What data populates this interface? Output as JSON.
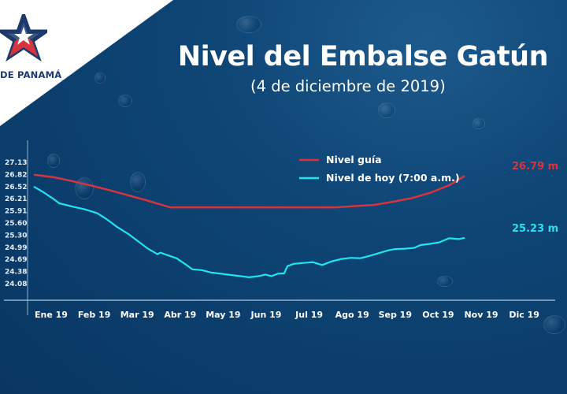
{
  "header": {
    "title": "Nivel del Embalse Gatún",
    "subtitle": "(4 de diciembre de 2019)",
    "logo_text": "DE PANAMÁ",
    "logo_icon": "star-icon"
  },
  "colors": {
    "guide": "#d8343f",
    "today": "#22e3f0",
    "background": "#0b3d6b",
    "axis": "#8fb3d6"
  },
  "chart_data": {
    "type": "line",
    "title": "Nivel del Embalse Gatún",
    "subtitle": "(4 de diciembre de 2019)",
    "xlabel": "",
    "ylabel": "",
    "unit": "m",
    "categories": [
      "Ene 19",
      "Feb 19",
      "Mar 19",
      "Abr 19",
      "May 19",
      "Jun 19",
      "Jul 19",
      "Ago 19",
      "Sep 19",
      "Oct 19",
      "Nov 19",
      "Dic 19"
    ],
    "yticks": [
      "27.13",
      "26.82",
      "26.52",
      "26.21",
      "25.91",
      "25.60",
      "25.30",
      "24.99",
      "24.69",
      "24.38",
      "24.08"
    ],
    "ylim": [
      23.8,
      27.3
    ],
    "grid": false,
    "legend_position": "top-center",
    "series": [
      {
        "name": "Nivel guía",
        "color": "#d8343f",
        "end_label": "26.79 m",
        "points": [
          [
            0,
            26.82
          ],
          [
            0.5,
            26.76
          ],
          [
            1,
            26.66
          ],
          [
            1.5,
            26.55
          ],
          [
            2,
            26.43
          ],
          [
            2.5,
            26.3
          ],
          [
            3,
            26.17
          ],
          [
            3.6,
            26.0
          ],
          [
            4,
            26.0
          ],
          [
            5,
            26.0
          ],
          [
            6,
            26.0
          ],
          [
            7,
            26.0
          ],
          [
            8,
            26.0
          ],
          [
            8.5,
            26.03
          ],
          [
            9,
            26.06
          ],
          [
            9.5,
            26.14
          ],
          [
            10,
            26.23
          ],
          [
            10.5,
            26.37
          ],
          [
            11,
            26.56
          ],
          [
            11.4,
            26.79
          ]
        ]
      },
      {
        "name": "Nivel de hoy (7:00 a.m.)",
        "color": "#22e3f0",
        "end_label": "25.23 m",
        "points": [
          [
            0,
            26.52
          ],
          [
            0.3,
            26.38
          ],
          [
            0.6,
            26.22
          ],
          [
            0.8,
            26.1
          ],
          [
            1.2,
            26.02
          ],
          [
            1.6,
            25.95
          ],
          [
            2.0,
            25.85
          ],
          [
            2.3,
            25.7
          ],
          [
            2.6,
            25.52
          ],
          [
            3.0,
            25.32
          ],
          [
            3.3,
            25.14
          ],
          [
            3.6,
            24.96
          ],
          [
            3.9,
            24.82
          ],
          [
            4.0,
            24.86
          ],
          [
            4.2,
            24.8
          ],
          [
            4.5,
            24.72
          ],
          [
            4.8,
            24.56
          ],
          [
            5.0,
            24.44
          ],
          [
            5.3,
            24.42
          ],
          [
            5.6,
            24.36
          ],
          [
            5.9,
            24.33
          ],
          [
            6.2,
            24.3
          ],
          [
            6.5,
            24.27
          ],
          [
            6.8,
            24.24
          ],
          [
            7.1,
            24.27
          ],
          [
            7.3,
            24.31
          ],
          [
            7.5,
            24.27
          ],
          [
            7.7,
            24.33
          ],
          [
            7.9,
            24.34
          ],
          [
            8.0,
            24.52
          ],
          [
            8.2,
            24.58
          ],
          [
            8.5,
            24.6
          ],
          [
            8.8,
            24.62
          ],
          [
            9.1,
            24.55
          ],
          [
            9.4,
            24.64
          ],
          [
            9.7,
            24.7
          ],
          [
            10.0,
            24.73
          ],
          [
            10.3,
            24.72
          ],
          [
            10.6,
            24.78
          ],
          [
            10.9,
            24.85
          ],
          [
            11.2,
            24.92
          ],
          [
            11.4,
            24.95
          ],
          [
            11.7,
            24.96
          ],
          [
            12.0,
            24.98
          ],
          [
            12.2,
            25.05
          ],
          [
            12.5,
            25.08
          ],
          [
            12.8,
            25.12
          ],
          [
            13.1,
            25.22
          ],
          [
            13.4,
            25.2
          ],
          [
            13.6,
            25.23
          ]
        ]
      }
    ]
  }
}
